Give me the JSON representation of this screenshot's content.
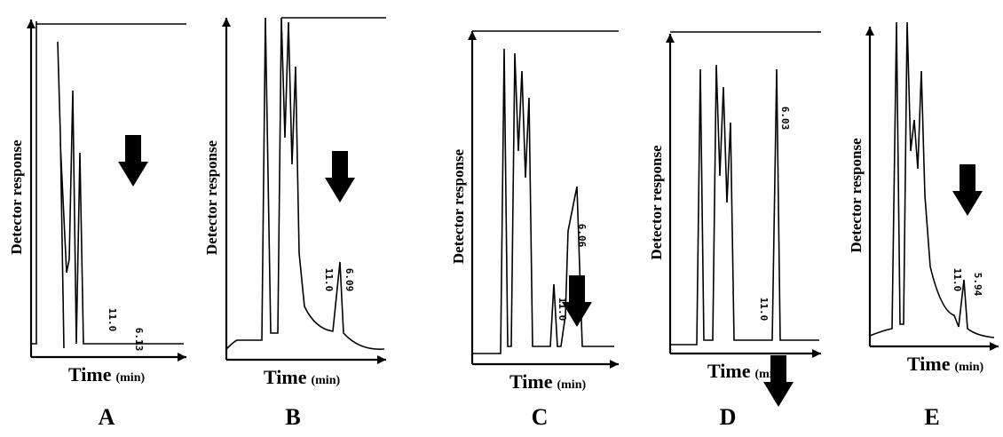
{
  "panels": [
    {
      "label": "A",
      "y_axis_label": "Detector response",
      "x_axis_label": "Time",
      "x_axis_unit": "(min)",
      "peak_labels": [
        "11.0",
        "6.13"
      ]
    },
    {
      "label": "B",
      "y_axis_label": "Detector response",
      "x_axis_label": "Time",
      "x_axis_unit": "(min)",
      "peak_labels": [
        "11.0",
        "6.09"
      ]
    },
    {
      "label": "C",
      "y_axis_label": "Detector response",
      "x_axis_label": "Time",
      "x_axis_unit": "(min)",
      "peak_labels": [
        "11.0",
        "6.06"
      ]
    },
    {
      "label": "D",
      "y_axis_label": "Detector response",
      "x_axis_label": "Time",
      "x_axis_unit": "(min)",
      "peak_labels": [
        "11.0",
        "6.03"
      ]
    },
    {
      "label": "E",
      "y_axis_label": "Detector response",
      "x_axis_label": "Time",
      "x_axis_unit": "(min)",
      "peak_labels": [
        "11.0",
        "5.94"
      ]
    }
  ]
}
